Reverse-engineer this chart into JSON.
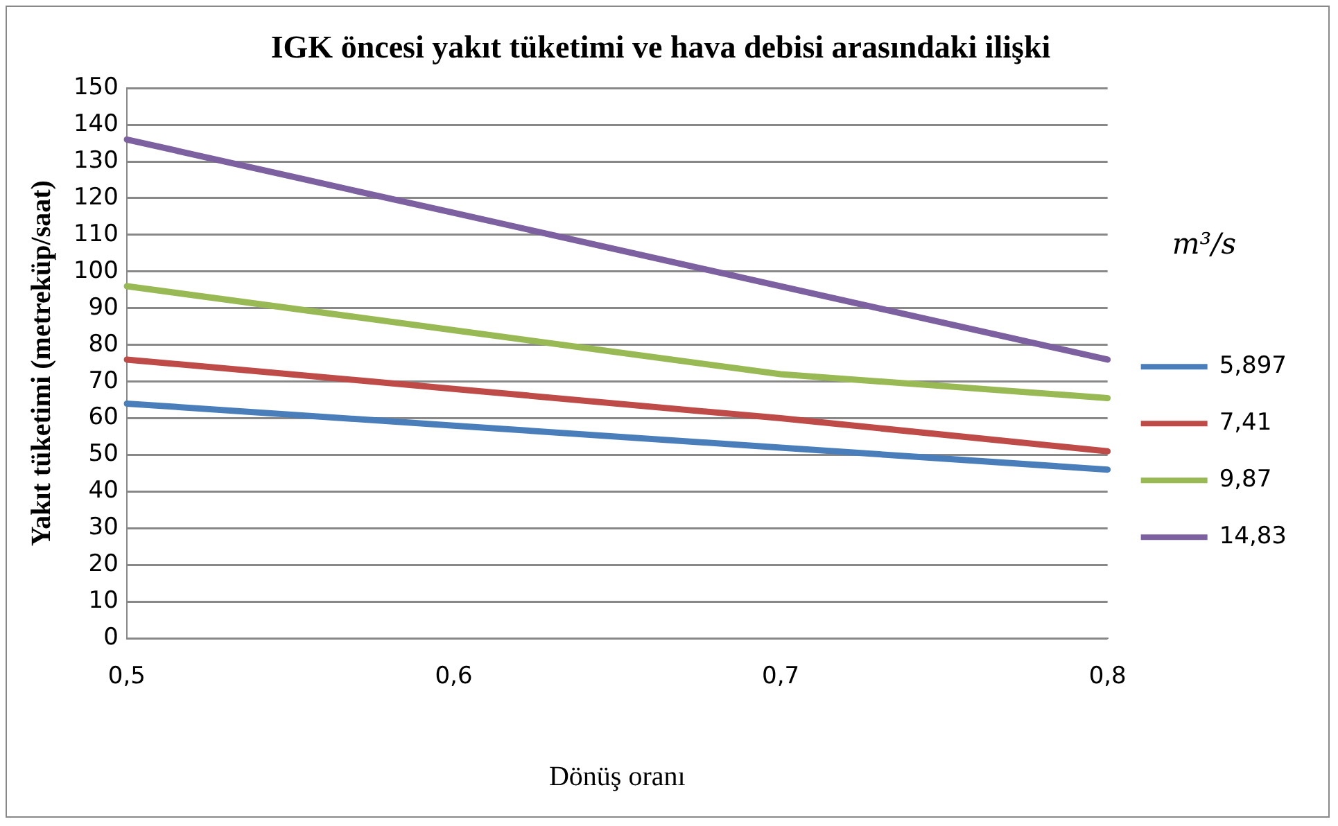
{
  "chart_data": {
    "type": "line",
    "title": "IGK öncesi yakıt tüketimi ve hava debisi arasındaki ilişki",
    "xlabel": "Dönüş oranı",
    "ylabel": "Yakıt tüketimi (metreküp/saat)",
    "legend_title": "m³/s",
    "categories": [
      "0,5",
      "0,6",
      "0,7",
      "0,8"
    ],
    "series": [
      {
        "name": "5,897",
        "color": "#4a7ebb",
        "values": [
          64,
          58,
          52,
          46
        ]
      },
      {
        "name": "7,41",
        "color": "#be4b48",
        "values": [
          76,
          68,
          60,
          51
        ]
      },
      {
        "name": "9,87",
        "color": "#98b954",
        "values": [
          96,
          84,
          72,
          65.5
        ]
      },
      {
        "name": "14,83",
        "color": "#7d60a0",
        "values": [
          136,
          116,
          96,
          76
        ]
      }
    ],
    "ylim": [
      0,
      150
    ],
    "yticks": [
      0,
      10,
      20,
      30,
      40,
      50,
      60,
      70,
      80,
      90,
      100,
      110,
      120,
      130,
      140,
      150
    ],
    "grid": "y",
    "legend": "right",
    "marker": "none",
    "line_style": "solid"
  }
}
